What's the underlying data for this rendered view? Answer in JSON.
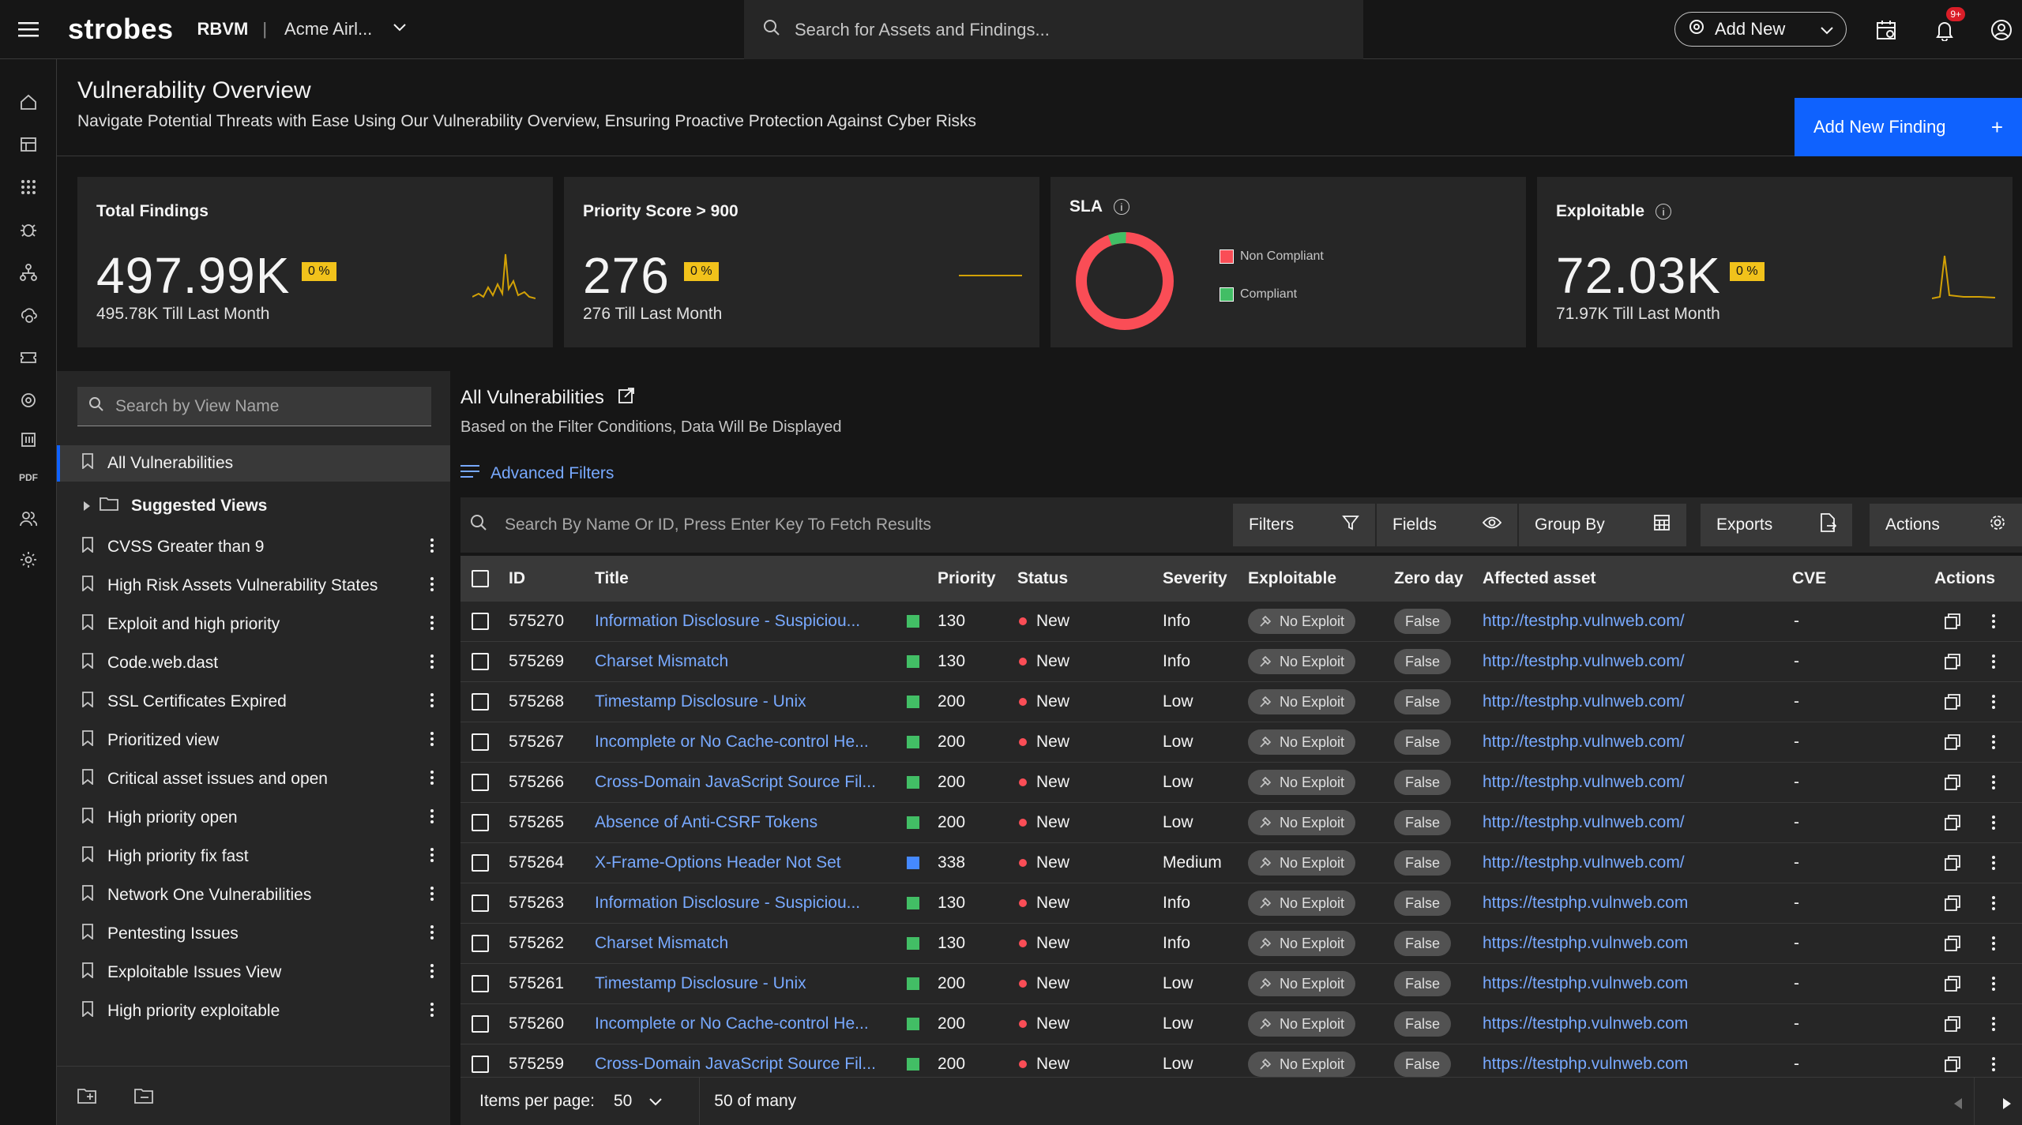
{
  "topbar": {
    "logo": "strobes",
    "product": "RBVM",
    "separator": "|",
    "tenant": "Acme Airl...",
    "search_placeholder": "Search for Assets and Findings...",
    "add_new_label": "Add New",
    "notification_badge": "9+"
  },
  "rail": {
    "pdf_label": "PDF"
  },
  "header": {
    "title": "Vulnerability Overview",
    "subtitle": "Navigate Potential Threats with Ease Using Our Vulnerability Overview, Ensuring Proactive Protection Against Cyber Risks",
    "add_finding_label": "Add New Finding",
    "add_finding_plus": "+"
  },
  "cards": {
    "total": {
      "title": "Total Findings",
      "value": "497.99K",
      "pct": "0 %",
      "sub": "495.78K Till Last Month"
    },
    "priority": {
      "title": "Priority Score > 900",
      "value": "276",
      "pct": "0 %",
      "sub": "276 Till Last Month"
    },
    "sla": {
      "title": "SLA",
      "info": "i",
      "non_compliant": "Non Compliant",
      "compliant": "Compliant",
      "compliant_fraction": 0.06
    },
    "exploitable": {
      "title": "Exploitable",
      "info": "i",
      "value": "72.03K",
      "pct": "0 %",
      "sub": "71.97K Till Last Month"
    }
  },
  "colors": {
    "accent": "#0f62fe",
    "link": "#78a9ff",
    "warning": "#f1c21b",
    "danger": "#fa4d56",
    "success": "#42be65"
  },
  "views": {
    "search_placeholder": "Search by View Name",
    "active": "All Vulnerabilities",
    "folder": "Suggested Views",
    "items": [
      "CVSS Greater than 9",
      "High Risk Assets Vulnerability States",
      "Exploit and high priority",
      "Code.web.dast",
      "SSL Certificates Expired",
      "Prioritized view",
      "Critical asset issues and open",
      "High priority open",
      "High priority fix fast",
      "Network One Vulnerabilities",
      "Pentesting Issues",
      "Exploitable Issues View",
      "High priority exploitable"
    ]
  },
  "main": {
    "title": "All Vulnerabilities",
    "subtitle": "Based on the Filter Conditions, Data Will Be Displayed",
    "advanced_filters": "Advanced Filters",
    "search_placeholder": "Search By Name Or ID, Press Enter Key To Fetch Results",
    "filters": "Filters",
    "fields": "Fields",
    "group_by": "Group By",
    "exports": "Exports",
    "actions": "Actions"
  },
  "table": {
    "columns": [
      "ID",
      "Title",
      "Priority",
      "Status",
      "Severity",
      "Exploitable",
      "Zero day",
      "Affected asset",
      "CVE",
      "Actions"
    ],
    "rows": [
      {
        "id": "575270",
        "title": "Information Disclosure - Suspiciou...",
        "priority_color": "#42be65",
        "priority": "130",
        "status": "New",
        "severity": "Info",
        "exploitable": "No Exploit",
        "zero_day": "False",
        "asset": "http://testphp.vulnweb.com/",
        "cve": "-"
      },
      {
        "id": "575269",
        "title": "Charset Mismatch",
        "priority_color": "#42be65",
        "priority": "130",
        "status": "New",
        "severity": "Info",
        "exploitable": "No Exploit",
        "zero_day": "False",
        "asset": "http://testphp.vulnweb.com/",
        "cve": "-"
      },
      {
        "id": "575268",
        "title": "Timestamp Disclosure - Unix",
        "priority_color": "#42be65",
        "priority": "200",
        "status": "New",
        "severity": "Low",
        "exploitable": "No Exploit",
        "zero_day": "False",
        "asset": "http://testphp.vulnweb.com/",
        "cve": "-"
      },
      {
        "id": "575267",
        "title": "Incomplete or No Cache-control He...",
        "priority_color": "#42be65",
        "priority": "200",
        "status": "New",
        "severity": "Low",
        "exploitable": "No Exploit",
        "zero_day": "False",
        "asset": "http://testphp.vulnweb.com/",
        "cve": "-"
      },
      {
        "id": "575266",
        "title": "Cross-Domain JavaScript Source Fil...",
        "priority_color": "#42be65",
        "priority": "200",
        "status": "New",
        "severity": "Low",
        "exploitable": "No Exploit",
        "zero_day": "False",
        "asset": "http://testphp.vulnweb.com/",
        "cve": "-"
      },
      {
        "id": "575265",
        "title": "Absence of Anti-CSRF Tokens",
        "priority_color": "#42be65",
        "priority": "200",
        "status": "New",
        "severity": "Low",
        "exploitable": "No Exploit",
        "zero_day": "False",
        "asset": "http://testphp.vulnweb.com/",
        "cve": "-"
      },
      {
        "id": "575264",
        "title": "X-Frame-Options Header Not Set",
        "priority_color": "#4589ff",
        "priority": "338",
        "status": "New",
        "severity": "Medium",
        "exploitable": "No Exploit",
        "zero_day": "False",
        "asset": "http://testphp.vulnweb.com/",
        "cve": "-"
      },
      {
        "id": "575263",
        "title": "Information Disclosure - Suspiciou...",
        "priority_color": "#42be65",
        "priority": "130",
        "status": "New",
        "severity": "Info",
        "exploitable": "No Exploit",
        "zero_day": "False",
        "asset": "https://testphp.vulnweb.com",
        "cve": "-"
      },
      {
        "id": "575262",
        "title": "Charset Mismatch",
        "priority_color": "#42be65",
        "priority": "130",
        "status": "New",
        "severity": "Info",
        "exploitable": "No Exploit",
        "zero_day": "False",
        "asset": "https://testphp.vulnweb.com",
        "cve": "-"
      },
      {
        "id": "575261",
        "title": "Timestamp Disclosure - Unix",
        "priority_color": "#42be65",
        "priority": "200",
        "status": "New",
        "severity": "Low",
        "exploitable": "No Exploit",
        "zero_day": "False",
        "asset": "https://testphp.vulnweb.com",
        "cve": "-"
      },
      {
        "id": "575260",
        "title": "Incomplete or No Cache-control He...",
        "priority_color": "#42be65",
        "priority": "200",
        "status": "New",
        "severity": "Low",
        "exploitable": "No Exploit",
        "zero_day": "False",
        "asset": "https://testphp.vulnweb.com",
        "cve": "-"
      },
      {
        "id": "575259",
        "title": "Cross-Domain JavaScript Source Fil...",
        "priority_color": "#42be65",
        "priority": "200",
        "status": "New",
        "severity": "Low",
        "exploitable": "No Exploit",
        "zero_day": "False",
        "asset": "https://testphp.vulnweb.com",
        "cve": "-"
      }
    ]
  },
  "pager": {
    "items_per_page_label": "Items per page:",
    "items_per_page": "50",
    "range": "50 of many"
  }
}
